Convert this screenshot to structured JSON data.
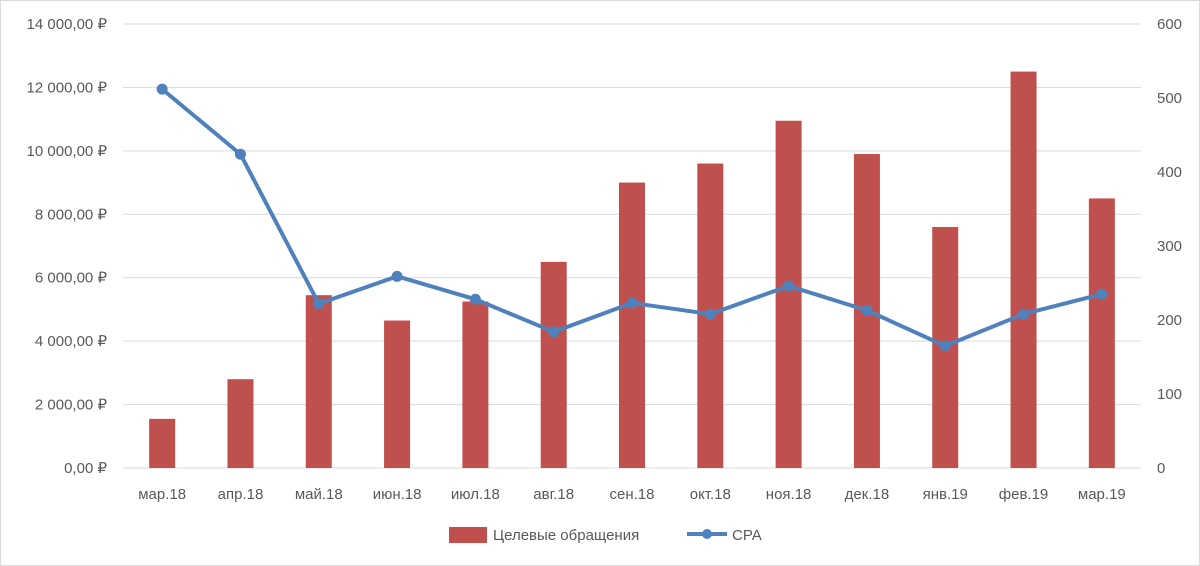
{
  "chart_data": {
    "type": "bar",
    "title": "",
    "xlabel": "",
    "ylabel": "",
    "categories": [
      "мар.18",
      "апр.18",
      "май.18",
      "июн.18",
      "июл.18",
      "авг.18",
      "сен.18",
      "окт.18",
      "ноя.18",
      "дек.18",
      "янв.19",
      "фев.19",
      "мар.19"
    ],
    "series": [
      {
        "name": "Целевые обращения",
        "type": "bar",
        "axis": "left",
        "color": "#c0504d",
        "values": [
          1550,
          2800,
          5450,
          4650,
          5250,
          6500,
          9000,
          9600,
          10950,
          9900,
          7600,
          12500,
          8500
        ]
      },
      {
        "name": "CPA",
        "type": "line",
        "axis": "right",
        "color": "#4f81bd",
        "values": [
          512,
          424,
          222,
          259,
          228,
          184,
          223,
          208,
          246,
          213,
          165,
          208,
          235
        ]
      }
    ],
    "ylim": [
      0,
      14000
    ],
    "y2lim": [
      0,
      600
    ],
    "y_ticks": [
      "0,00 ₽",
      "2 000,00 ₽",
      "4 000,00 ₽",
      "6 000,00 ₽",
      "8 000,00 ₽",
      "10 000,00 ₽",
      "12 000,00 ₽",
      "14 000,00 ₽"
    ],
    "y2_ticks": [
      "0",
      "100",
      "200",
      "300",
      "400",
      "500",
      "600"
    ],
    "grid": true,
    "legend_position": "bottom"
  }
}
